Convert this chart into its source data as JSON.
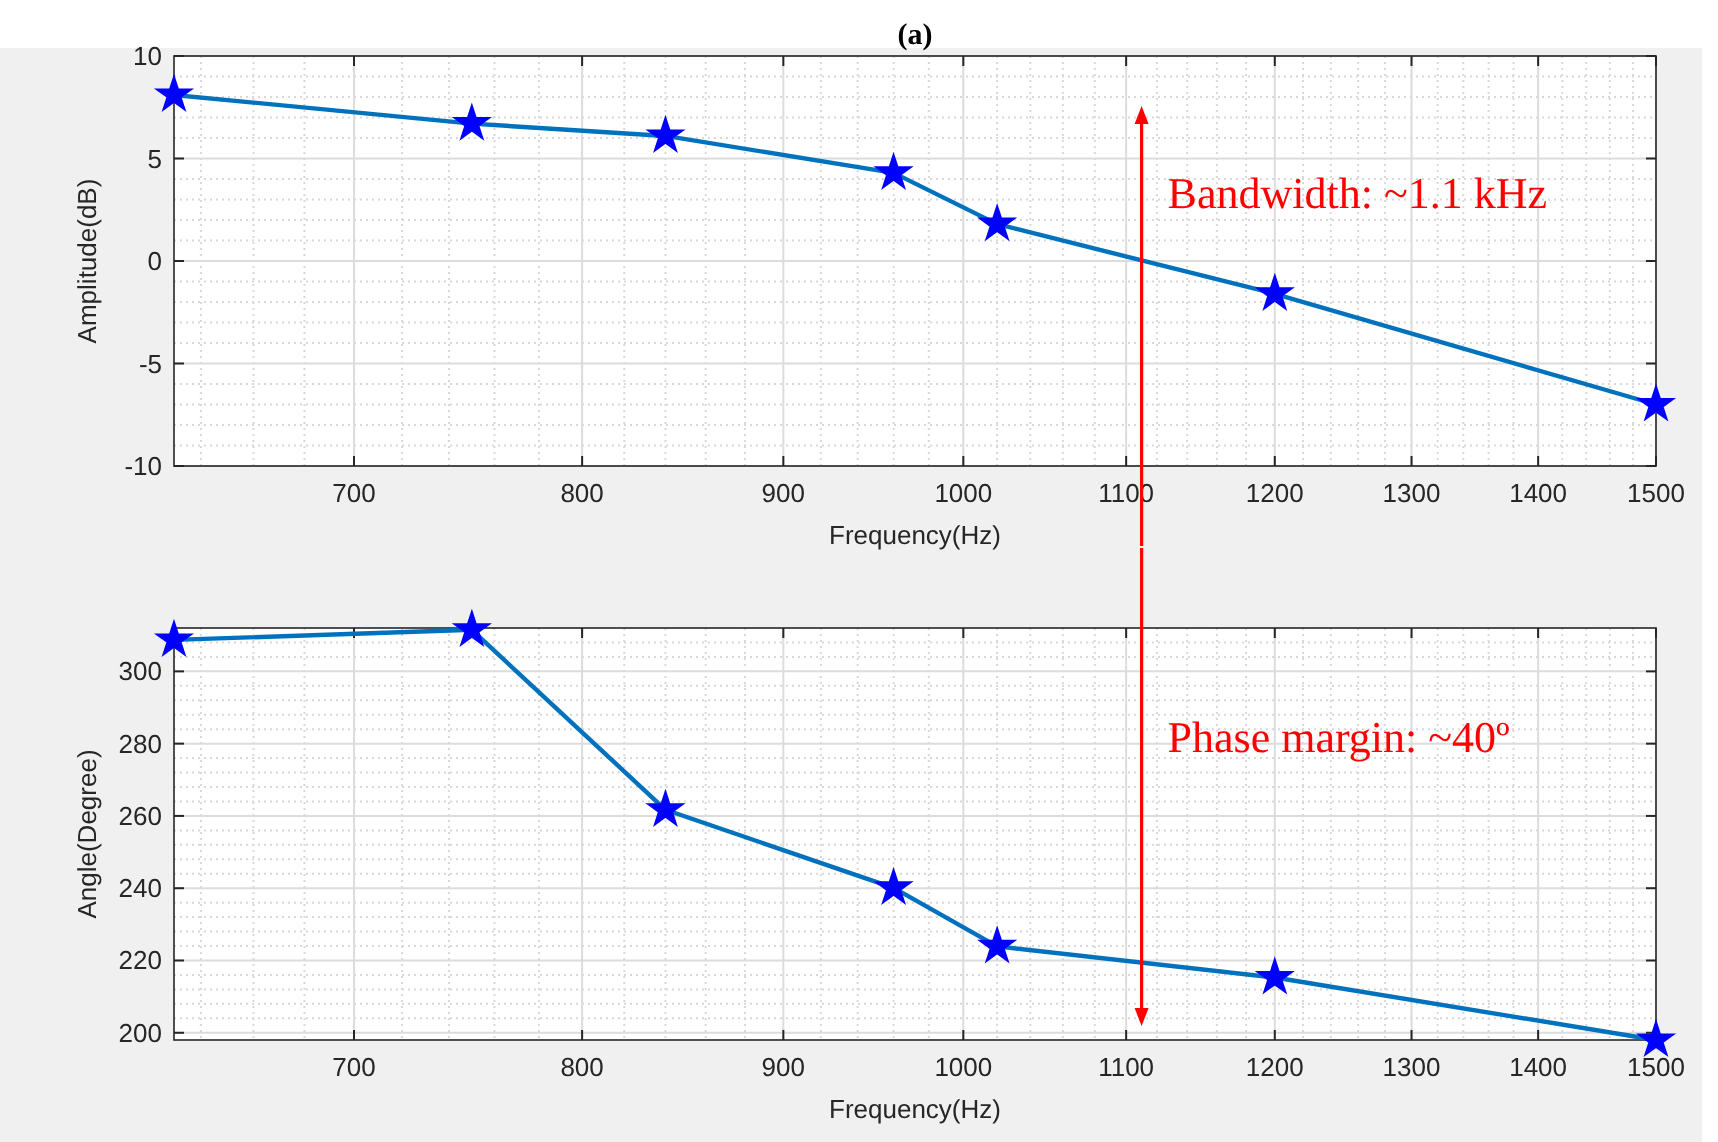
{
  "chart_data": [
    {
      "type": "line",
      "title": "(a)",
      "log": "x",
      "x": [
        630,
        750,
        840,
        960,
        1020,
        1200,
        1500
      ],
      "series": [
        {
          "color": "#0072bd",
          "values": [
            8.1,
            6.7,
            6.1,
            4.3,
            1.8,
            -1.6,
            -7.0
          ]
        }
      ],
      "xlim": [
        630,
        1500
      ],
      "xticks": [
        700,
        800,
        900,
        1000,
        1100,
        1200,
        1300,
        1400,
        1500
      ],
      "ylim": [
        -10,
        10
      ],
      "yticks": [
        -10,
        -5,
        0,
        5,
        10
      ],
      "xlabel": "Frequency(Hz)",
      "ylabel": "Amplitude(dB)",
      "grid": true,
      "marker": "star",
      "line_style": "solid",
      "ref_lines": [
        {
          "axis": "x",
          "value": 1110,
          "color": "#ff0000"
        }
      ],
      "annotations": [
        "Bandwidth: ~1.1 kHz"
      ]
    },
    {
      "type": "line",
      "log": "x",
      "x": [
        630,
        750,
        840,
        960,
        1020,
        1200,
        1500
      ],
      "series": [
        {
          "color": "#0072bd",
          "values": [
            308.7,
            311.5,
            261.7,
            240.1,
            223.9,
            215.3,
            198
          ]
        }
      ],
      "xlim": [
        630,
        1500
      ],
      "xticks": [
        700,
        800,
        900,
        1000,
        1100,
        1200,
        1300,
        1400,
        1500
      ],
      "ylim": [
        198,
        312
      ],
      "yticks": [
        200,
        220,
        240,
        260,
        280,
        300
      ],
      "xlabel": "Frequency(Hz)",
      "ylabel": "Angle(Degree)",
      "grid": true,
      "marker": "star",
      "line_style": "solid",
      "ref_lines": [
        {
          "axis": "x",
          "value": 1110,
          "color": "#ff0000"
        }
      ],
      "annotations": [
        "Phase margin: ~40º"
      ]
    }
  ]
}
